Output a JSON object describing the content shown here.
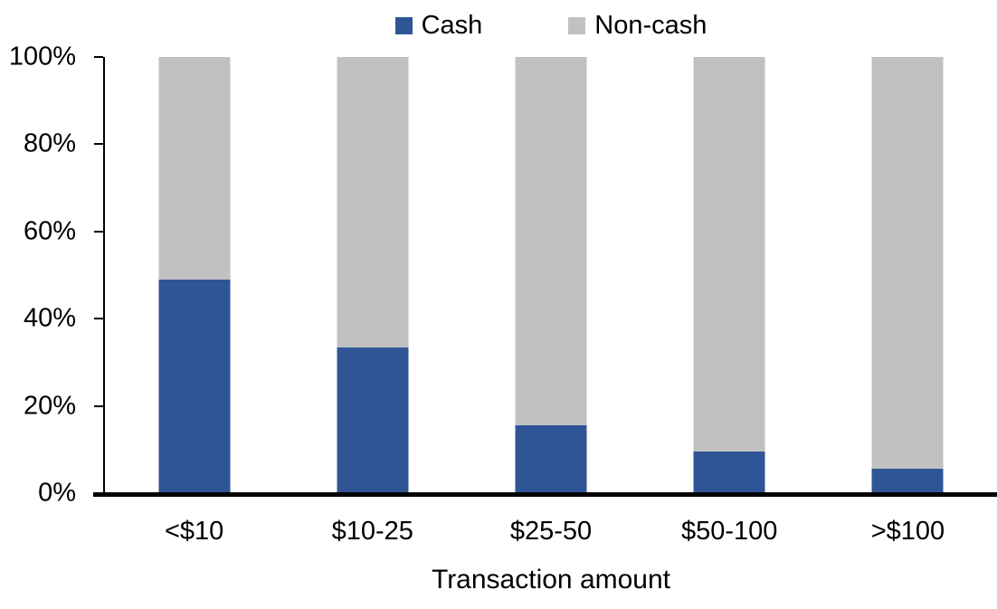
{
  "chart_data": {
    "type": "bar",
    "variant": "100-percent-stacked-column",
    "title": "",
    "xlabel": "Transaction amount",
    "ylabel": "",
    "categories": [
      "<$10",
      "$10-25",
      "$25-50",
      "$50-100",
      ">$100"
    ],
    "series": [
      {
        "name": "Cash",
        "color": "#2F5597",
        "values": [
          49,
          33.5,
          15.5,
          9.5,
          5.5
        ]
      },
      {
        "name": "Non-cash",
        "color": "#C1C1C1",
        "values": [
          51,
          66.5,
          84.5,
          90.5,
          94.5
        ]
      }
    ],
    "ylim": [
      0,
      100
    ],
    "ytick_labels": [
      "0%",
      "20%",
      "40%",
      "60%",
      "80%",
      "100%"
    ],
    "grid": false,
    "legend_position": "top-center",
    "axis_color": "#000000",
    "background_color": "#FFFFFF"
  }
}
